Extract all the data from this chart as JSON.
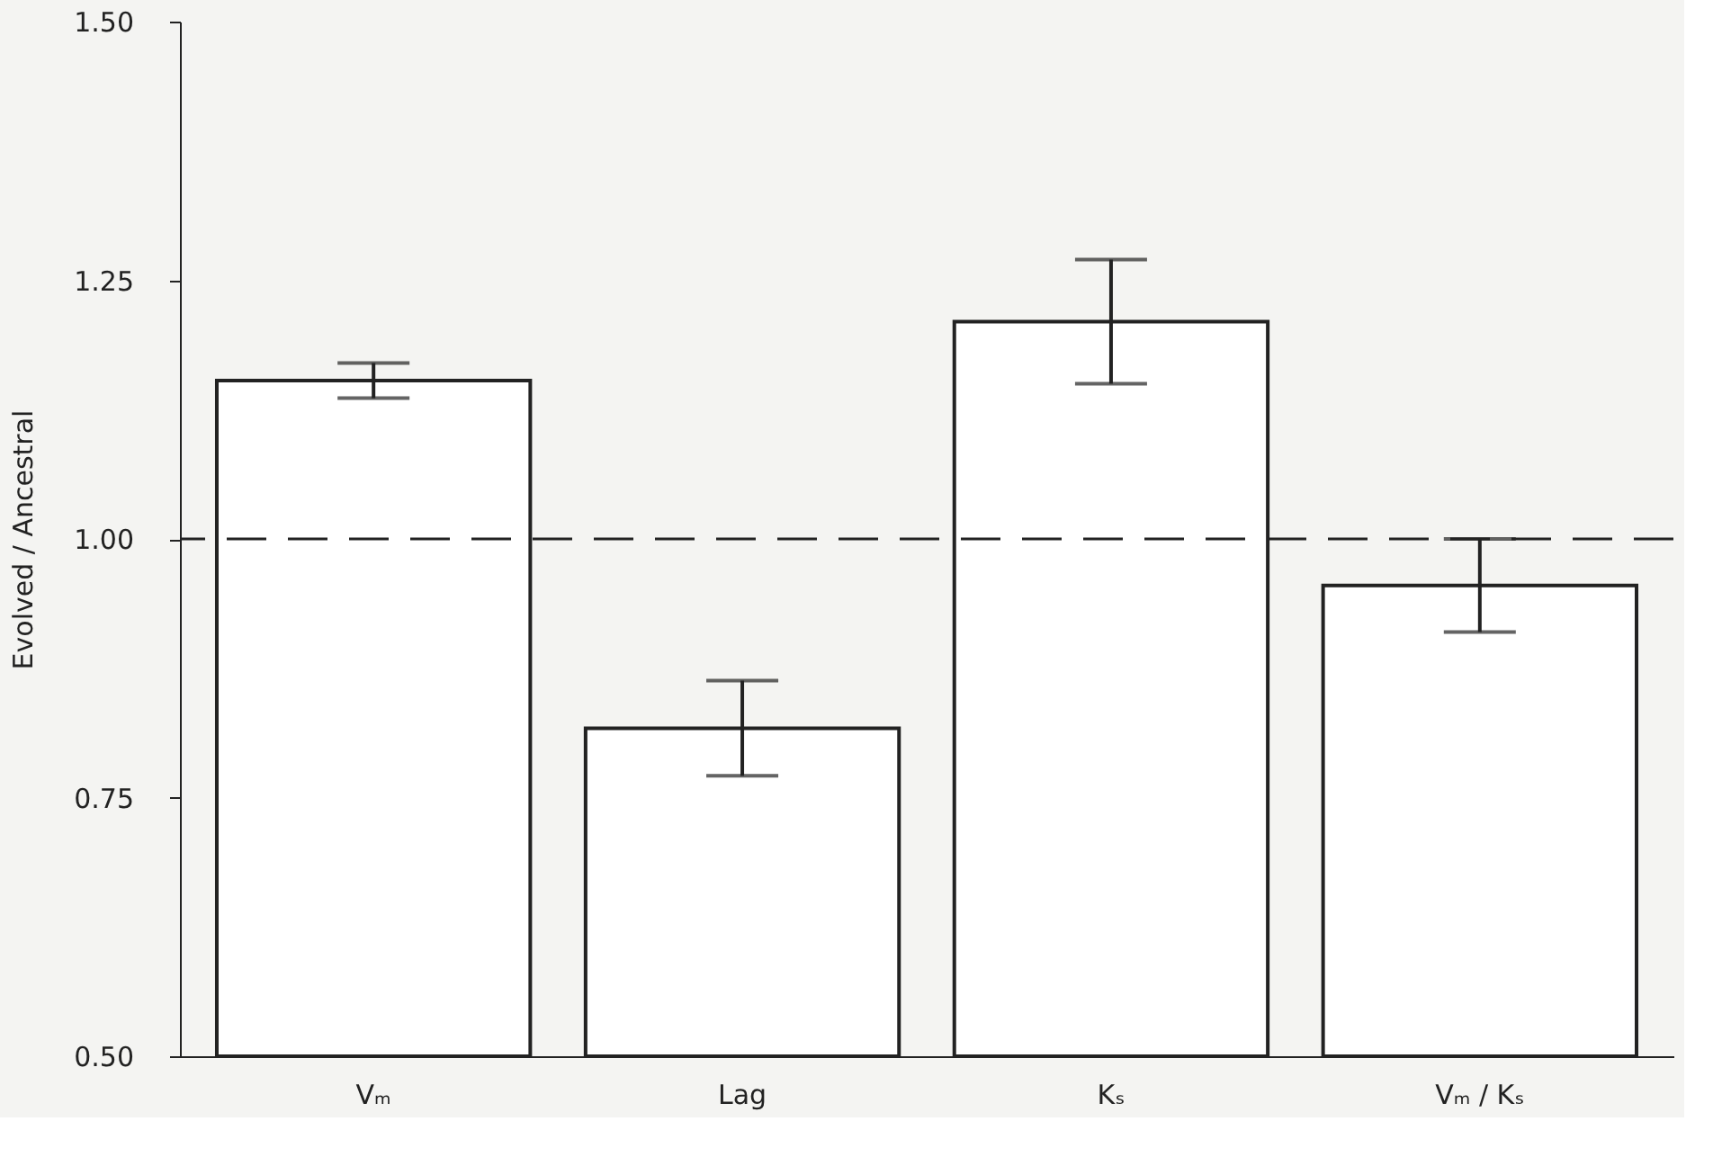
{
  "chart_data": {
    "type": "bar",
    "ylabel": "Evolved / Ancestral",
    "categories": [
      "Vₘ",
      "Lag",
      "Kₛ",
      "Vₘ / Kₛ"
    ],
    "values": [
      1.153,
      0.817,
      1.21,
      0.955
    ],
    "errors": [
      0.017,
      0.046,
      0.06,
      0.045
    ],
    "color": "#ffffff",
    "ylim": [
      0.5,
      1.5
    ],
    "yticks": [
      {
        "value": 0.5,
        "label": "0.50"
      },
      {
        "value": 0.75,
        "label": "0.75"
      },
      {
        "value": 1.0,
        "label": "1.00"
      },
      {
        "value": 1.25,
        "label": "1.25"
      },
      {
        "value": 1.5,
        "label": "1.50"
      }
    ],
    "ref_lines": [
      {
        "axis": "y",
        "value": 1.0,
        "line_style": "dashed"
      }
    ],
    "grid": false
  }
}
